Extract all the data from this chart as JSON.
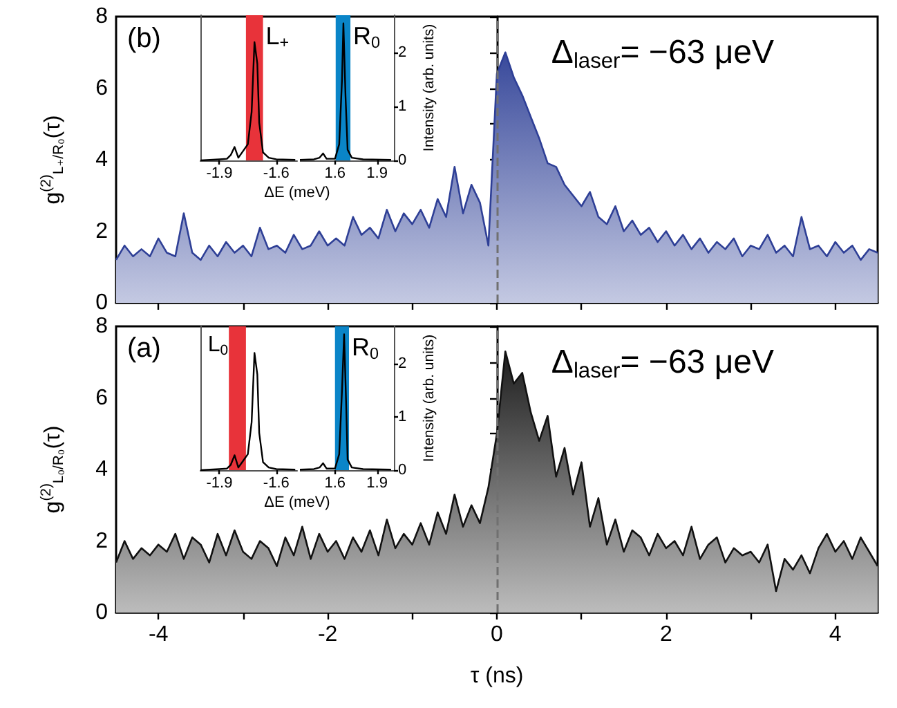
{
  "chart_data": [
    {
      "type": "area",
      "ylabel": "g$^{(2)}$$_{L₊/R₀}$(τ)",
      "annotations": [
        "(b)",
        "Δ$_{laser}$= −63 μeV"
      ],
      "x": [
        -4.5,
        -4.4,
        -4.3,
        -4.2,
        -4.1,
        -4.0,
        -3.9,
        -3.8,
        -3.7,
        -3.6,
        -3.5,
        -3.4,
        -3.3,
        -3.2,
        -3.1,
        -3.0,
        -2.9,
        -2.8,
        -2.7,
        -2.6,
        -2.5,
        -2.4,
        -2.3,
        -2.2,
        -2.1,
        -2.0,
        -1.9,
        -1.8,
        -1.7,
        -1.6,
        -1.5,
        -1.4,
        -1.3,
        -1.2,
        -1.1,
        -1.0,
        -0.9,
        -0.8,
        -0.7,
        -0.6,
        -0.5,
        -0.4,
        -0.3,
        -0.2,
        -0.1,
        0.0,
        0.1,
        0.2,
        0.3,
        0.4,
        0.5,
        0.6,
        0.7,
        0.8,
        0.9,
        1.0,
        1.1,
        1.2,
        1.3,
        1.4,
        1.5,
        1.6,
        1.7,
        1.8,
        1.9,
        2.0,
        2.1,
        2.2,
        2.3,
        2.4,
        2.5,
        2.6,
        2.7,
        2.8,
        2.9,
        3.0,
        3.1,
        3.2,
        3.3,
        3.4,
        3.5,
        3.6,
        3.7,
        3.8,
        3.9,
        4.0,
        4.1,
        4.2,
        4.3,
        4.4,
        4.5
      ],
      "series": [
        {
          "color": "#2e3f96",
          "values": [
            1.2,
            1.6,
            1.3,
            1.5,
            1.3,
            1.8,
            1.4,
            1.3,
            2.5,
            1.4,
            1.2,
            1.6,
            1.3,
            1.7,
            1.4,
            1.6,
            1.3,
            2.1,
            1.5,
            1.6,
            1.4,
            1.9,
            1.5,
            1.6,
            2.0,
            1.6,
            1.8,
            1.6,
            2.4,
            1.9,
            2.1,
            1.8,
            2.6,
            2.0,
            2.5,
            2.2,
            2.6,
            2.1,
            2.9,
            2.4,
            3.8,
            2.5,
            3.3,
            2.8,
            1.6,
            6.4,
            7.0,
            6.3,
            5.8,
            5.2,
            4.6,
            3.9,
            3.8,
            3.3,
            3.0,
            2.7,
            3.1,
            2.4,
            2.2,
            2.7,
            2.0,
            2.3,
            1.9,
            2.1,
            1.7,
            2.0,
            1.6,
            1.9,
            1.5,
            1.8,
            1.4,
            1.7,
            1.5,
            1.8,
            1.3,
            1.6,
            1.5,
            1.9,
            1.4,
            1.6,
            1.3,
            2.4,
            1.5,
            1.6,
            1.3,
            1.7,
            1.4,
            1.6,
            1.2,
            1.5,
            1.4
          ]
        }
      ],
      "xlim": [
        -4.5,
        4.5
      ],
      "xticks": [
        -4,
        {
          "value": -3,
          "label": null
        },
        -2,
        {
          "value": -1,
          "label": null
        },
        0,
        {
          "value": 1,
          "label": null
        },
        2,
        {
          "value": 3,
          "label": null
        },
        4
      ],
      "ylim": [
        0,
        8
      ],
      "yticks": [
        0,
        {
          "value": 1,
          "label": null
        },
        2,
        {
          "value": 3,
          "label": null
        },
        4,
        {
          "value": 5,
          "label": null
        },
        6,
        {
          "value": 7,
          "label": null
        },
        8
      ],
      "tick_labels": "y",
      "ref_lines": [
        {
          "axis": "x",
          "value": 0,
          "color": "#707070",
          "line_style": "dashed"
        }
      ]
    },
    {
      "type": "line",
      "xlabel": "ΔE (meV)",
      "series": [
        {
          "color": "#000000",
          "x": [
            -2.0,
            -1.9,
            -1.86,
            -1.84,
            -1.82,
            -1.8,
            -1.78,
            -1.75,
            -1.73,
            -1.715,
            -1.7,
            -1.69,
            -1.67,
            -1.64,
            -1.6,
            -1.5
          ],
          "values": [
            0,
            0.02,
            0.03,
            0.1,
            0.25,
            0.05,
            0.15,
            0.3,
            0.9,
            2.2,
            1.8,
            0.7,
            0.15,
            0.05,
            0.02,
            0.01
          ]
        }
      ],
      "xlim": [
        -2.0,
        -1.49
      ],
      "xticks": [
        -1.9,
        -1.6
      ],
      "ylim": [
        0,
        2.7
      ],
      "tick_labels": "x",
      "bands": [
        {
          "axis": "x",
          "from": -1.76,
          "to": -1.67,
          "color": "#e8333a",
          "label": "L$_{+}$"
        }
      ]
    },
    {
      "type": "line",
      "ylabel": "Intensity (arb. units)",
      "series": [
        {
          "color": "#000000",
          "x": [
            1.35,
            1.45,
            1.49,
            1.515,
            1.54,
            1.6,
            1.63,
            1.65,
            1.66,
            1.675,
            1.69,
            1.72,
            1.8,
            2.0
          ],
          "values": [
            0.01,
            0.02,
            0.05,
            0.13,
            0.03,
            0.03,
            0.3,
            1.5,
            2.55,
            1.2,
            0.2,
            0.05,
            0.02,
            0.01
          ]
        }
      ],
      "xlim": [
        1.35,
        2.02
      ],
      "xticks": [
        1.6,
        1.9
      ],
      "ylim": [
        0,
        2.7
      ],
      "yticks": [
        0,
        1,
        2
      ],
      "bands": [
        {
          "axis": "x",
          "from": 1.605,
          "to": 1.71,
          "color": "#0a85c8",
          "label": "R$_{0}$"
        }
      ]
    },
    {
      "type": "area",
      "xlabel": "τ (ns)",
      "ylabel": "g$^{(2)}$$_{L₀/R₀}$(τ)",
      "annotations": [
        "(a)",
        "Δ$_{laser}$= −63 μeV"
      ],
      "x": [
        -4.5,
        -4.4,
        -4.3,
        -4.2,
        -4.1,
        -4.0,
        -3.9,
        -3.8,
        -3.7,
        -3.6,
        -3.5,
        -3.4,
        -3.3,
        -3.2,
        -3.1,
        -3.0,
        -2.9,
        -2.8,
        -2.7,
        -2.6,
        -2.5,
        -2.4,
        -2.3,
        -2.2,
        -2.1,
        -2.0,
        -1.9,
        -1.8,
        -1.7,
        -1.6,
        -1.5,
        -1.4,
        -1.3,
        -1.2,
        -1.1,
        -1.0,
        -0.9,
        -0.8,
        -0.7,
        -0.6,
        -0.5,
        -0.4,
        -0.3,
        -0.2,
        -0.1,
        0.0,
        0.1,
        0.2,
        0.3,
        0.4,
        0.5,
        0.6,
        0.7,
        0.8,
        0.9,
        1.0,
        1.1,
        1.2,
        1.3,
        1.4,
        1.5,
        1.6,
        1.7,
        1.8,
        1.9,
        2.0,
        2.1,
        2.2,
        2.3,
        2.4,
        2.5,
        2.6,
        2.7,
        2.8,
        2.9,
        3.0,
        3.1,
        3.2,
        3.3,
        3.4,
        3.5,
        3.6,
        3.7,
        3.8,
        3.9,
        4.0,
        4.1,
        4.2,
        4.3,
        4.4,
        4.5
      ],
      "series": [
        {
          "color": "#111111",
          "values": [
            1.4,
            2.0,
            1.5,
            1.8,
            1.6,
            1.9,
            1.7,
            2.2,
            1.5,
            2.1,
            1.9,
            1.4,
            2.2,
            1.6,
            2.3,
            1.7,
            1.5,
            2.0,
            1.8,
            1.3,
            2.1,
            1.6,
            2.4,
            1.5,
            2.2,
            1.7,
            2.0,
            1.5,
            2.1,
            1.7,
            2.3,
            1.6,
            2.6,
            1.8,
            2.2,
            1.9,
            2.5,
            1.9,
            2.8,
            2.2,
            3.3,
            2.4,
            3.0,
            2.5,
            3.5,
            5.0,
            7.3,
            6.4,
            6.7,
            5.6,
            4.8,
            5.5,
            3.8,
            4.6,
            3.3,
            4.2,
            2.4,
            3.2,
            1.9,
            2.6,
            1.7,
            2.3,
            2.1,
            1.6,
            2.2,
            1.8,
            2.0,
            1.6,
            2.4,
            1.5,
            1.9,
            2.1,
            1.4,
            1.8,
            1.6,
            1.7,
            1.4,
            1.9,
            0.6,
            1.5,
            1.2,
            1.6,
            1.1,
            1.8,
            2.2,
            1.7,
            2.0,
            1.5,
            2.1,
            1.7,
            1.3
          ]
        }
      ],
      "xlim": [
        -4.5,
        4.5
      ],
      "xticks": [
        -4,
        {
          "value": -3,
          "label": null
        },
        -2,
        {
          "value": -1,
          "label": null
        },
        0,
        {
          "value": 1,
          "label": null
        },
        2,
        {
          "value": 3,
          "label": null
        },
        4
      ],
      "ylim": [
        0,
        8
      ],
      "yticks": [
        0,
        {
          "value": 1,
          "label": null
        },
        2,
        {
          "value": 3,
          "label": null
        },
        4,
        {
          "value": 5,
          "label": null
        },
        6,
        {
          "value": 7,
          "label": null
        },
        8
      ],
      "ref_lines": [
        {
          "axis": "x",
          "value": 0,
          "color": "#707070",
          "line_style": "dashed"
        }
      ]
    },
    {
      "type": "line",
      "xlabel": "ΔE (meV)",
      "series": [
        {
          "color": "#000000",
          "x": [
            -2.0,
            -1.9,
            -1.86,
            -1.84,
            -1.82,
            -1.8,
            -1.78,
            -1.75,
            -1.73,
            -1.715,
            -1.7,
            -1.69,
            -1.67,
            -1.64,
            -1.6,
            -1.5
          ],
          "values": [
            0,
            0.02,
            0.03,
            0.1,
            0.28,
            0.05,
            0.15,
            0.3,
            0.9,
            2.2,
            1.8,
            0.7,
            0.15,
            0.05,
            0.02,
            0.01
          ]
        }
      ],
      "xlim": [
        -2.0,
        -1.49
      ],
      "xticks": [
        -1.9,
        -1.6
      ],
      "ylim": [
        0,
        2.7
      ],
      "tick_labels": "x",
      "bands": [
        {
          "axis": "x",
          "from": -1.85,
          "to": -1.76,
          "color": "#e8333a",
          "label": "L$_{0}$"
        }
      ]
    },
    {
      "type": "line",
      "ylabel": "Intensity (arb. units)",
      "series": [
        {
          "color": "#000000",
          "x": [
            1.35,
            1.45,
            1.49,
            1.515,
            1.54,
            1.6,
            1.63,
            1.65,
            1.665,
            1.68,
            1.69,
            1.72,
            1.8,
            2.0
          ],
          "values": [
            0.01,
            0.02,
            0.05,
            0.13,
            0.03,
            0.03,
            0.3,
            1.5,
            2.55,
            1.2,
            0.2,
            0.05,
            0.02,
            0.01
          ]
        }
      ],
      "xlim": [
        1.35,
        2.02
      ],
      "xticks": [
        1.6,
        1.9
      ],
      "ylim": [
        0,
        2.7
      ],
      "yticks": [
        0,
        1,
        2
      ],
      "bands": [
        {
          "axis": "x",
          "from": 1.6,
          "to": 1.7,
          "color": "#0a85c8",
          "label": "R$_{0}$"
        }
      ]
    }
  ]
}
